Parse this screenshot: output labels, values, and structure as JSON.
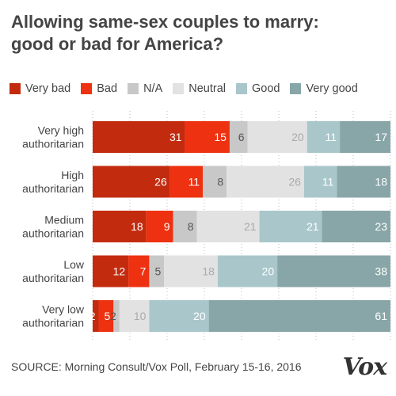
{
  "title_line1": "Allowing same-sex couples to marry:",
  "title_line2": "good or bad for America?",
  "source": "SOURCE: Morning Consult/Vox Poll, February 15-16, 2016",
  "logo": "Vox",
  "chart_data": {
    "type": "bar",
    "orientation": "horizontal",
    "stacked": true,
    "categories": [
      [
        "Very high",
        "authoritarian"
      ],
      [
        "High",
        "authoritarian"
      ],
      [
        "Medium",
        "authoritarian"
      ],
      [
        "Low",
        "authoritarian"
      ],
      [
        "Very low",
        "authoritarian"
      ]
    ],
    "series": [
      {
        "name": "Very bad",
        "color": "#c32b0f",
        "label_color": "#ffffff",
        "values": [
          31,
          26,
          18,
          12,
          2
        ]
      },
      {
        "name": "Bad",
        "color": "#ee3110",
        "label_color": "#ffffff",
        "values": [
          15,
          11,
          9,
          7,
          5
        ]
      },
      {
        "name": "N/A",
        "color": "#c8c8c8",
        "label_color": "#555555",
        "values": [
          6,
          8,
          8,
          5,
          2
        ]
      },
      {
        "name": "Neutral",
        "color": "#e2e2e2",
        "label_color": "#aaaaaa",
        "values": [
          20,
          26,
          21,
          18,
          10
        ]
      },
      {
        "name": "Good",
        "color": "#a9c7cb",
        "label_color": "#ffffff",
        "values": [
          11,
          11,
          21,
          20,
          20
        ]
      },
      {
        "name": "Very good",
        "color": "#88a6a8",
        "label_color": "#ffffff",
        "values": [
          17,
          18,
          23,
          38,
          61
        ]
      }
    ],
    "xlim": [
      0,
      100
    ],
    "grid": true,
    "legend_position": "top"
  }
}
